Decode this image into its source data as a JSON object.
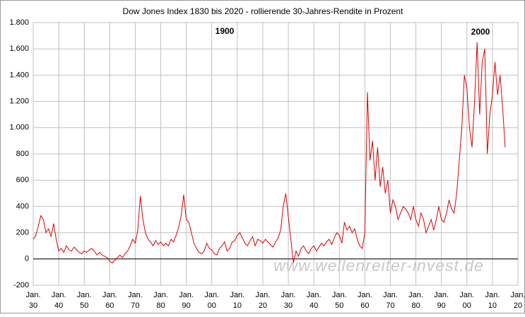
{
  "chart_data": {
    "type": "line",
    "title": "Dow Jones Index 1830 bis 2020 - rollierende 30-Jahres-Rendite in Prozent",
    "annotations": [
      "1900",
      "2000"
    ],
    "watermark": "www.wellenreiter-invest.de",
    "x": [
      1830,
      1831,
      1832,
      1833,
      1834,
      1835,
      1836,
      1837,
      1838,
      1839,
      1840,
      1841,
      1842,
      1843,
      1844,
      1845,
      1846,
      1847,
      1848,
      1849,
      1850,
      1851,
      1852,
      1853,
      1854,
      1855,
      1856,
      1857,
      1858,
      1859,
      1860,
      1861,
      1862,
      1863,
      1864,
      1865,
      1866,
      1867,
      1868,
      1869,
      1870,
      1871,
      1872,
      1873,
      1874,
      1875,
      1876,
      1877,
      1878,
      1879,
      1880,
      1881,
      1882,
      1883,
      1884,
      1885,
      1886,
      1887,
      1888,
      1889,
      1890,
      1891,
      1892,
      1893,
      1894,
      1895,
      1896,
      1897,
      1898,
      1899,
      1900,
      1901,
      1902,
      1903,
      1904,
      1905,
      1906,
      1907,
      1908,
      1909,
      1910,
      1911,
      1912,
      1913,
      1914,
      1915,
      1916,
      1917,
      1918,
      1919,
      1920,
      1921,
      1922,
      1923,
      1924,
      1925,
      1926,
      1927,
      1928,
      1929,
      1930,
      1931,
      1932,
      1933,
      1934,
      1935,
      1936,
      1937,
      1938,
      1939,
      1940,
      1941,
      1942,
      1943,
      1944,
      1945,
      1946,
      1947,
      1948,
      1949,
      1950,
      1951,
      1952,
      1953,
      1954,
      1955,
      1956,
      1957,
      1958,
      1959,
      1960,
      1961,
      1962,
      1963,
      1964,
      1965,
      1966,
      1967,
      1968,
      1969,
      1970,
      1971,
      1972,
      1973,
      1974,
      1975,
      1976,
      1977,
      1978,
      1979,
      1980,
      1981,
      1982,
      1983,
      1984,
      1985,
      1986,
      1987,
      1988,
      1989,
      1990,
      1991,
      1992,
      1993,
      1994,
      1995,
      1996,
      1997,
      1998,
      1999,
      2000,
      2001,
      2002,
      2003,
      2004,
      2005,
      2006,
      2007,
      2008,
      2009,
      2010,
      2011,
      2012,
      2013,
      2014,
      2015
    ],
    "series": [
      {
        "color": "#e00000",
        "values": [
          150,
          180,
          250,
          330,
          300,
          200,
          230,
          170,
          270,
          150,
          60,
          80,
          50,
          100,
          70,
          60,
          90,
          70,
          50,
          40,
          60,
          50,
          70,
          80,
          60,
          30,
          50,
          30,
          20,
          10,
          -20,
          -30,
          -10,
          10,
          30,
          10,
          40,
          60,
          100,
          150,
          120,
          220,
          480,
          300,
          200,
          150,
          130,
          100,
          140,
          110,
          130,
          100,
          120,
          100,
          150,
          130,
          180,
          240,
          330,
          490,
          300,
          280,
          200,
          120,
          80,
          50,
          40,
          60,
          120,
          80,
          70,
          40,
          30,
          80,
          100,
          130,
          60,
          80,
          130,
          140,
          180,
          200,
          160,
          120,
          100,
          140,
          170,
          100,
          150,
          140,
          120,
          150,
          130,
          110,
          90,
          130,
          160,
          220,
          400,
          500,
          320,
          150,
          -30,
          60,
          20,
          80,
          100,
          60,
          40,
          80,
          100,
          60,
          90,
          120,
          100,
          130,
          150,
          110,
          160,
          200,
          180,
          120,
          280,
          220,
          250,
          200,
          230,
          150,
          100,
          80,
          200,
          1270,
          750,
          900,
          600,
          850,
          550,
          700,
          500,
          600,
          350,
          450,
          400,
          300,
          350,
          400,
          380,
          350,
          300,
          400,
          300,
          250,
          350,
          300,
          200,
          250,
          300,
          220,
          300,
          400,
          300,
          280,
          350,
          450,
          380,
          350,
          500,
          750,
          1000,
          1400,
          1300,
          1000,
          850,
          1200,
          1650,
          1100,
          1500,
          1600,
          800,
          1100,
          1250,
          1500,
          1250,
          1400,
          1150,
          850
        ]
      }
    ],
    "xlim": [
      1830,
      2020
    ],
    "xticks": [
      {
        "value": 1830,
        "label": "Jan. 30"
      },
      {
        "value": 1840,
        "label": "Jan. 40"
      },
      {
        "value": 1850,
        "label": "Jan. 50"
      },
      {
        "value": 1860,
        "label": "Jan. 60"
      },
      {
        "value": 1870,
        "label": "Jan. 70"
      },
      {
        "value": 1880,
        "label": "Jan. 80"
      },
      {
        "value": 1890,
        "label": "Jan. 90"
      },
      {
        "value": 1900,
        "label": "Jan. 00"
      },
      {
        "value": 1910,
        "label": "Jan. 10"
      },
      {
        "value": 1920,
        "label": "Jan. 20"
      },
      {
        "value": 1930,
        "label": "Jan. 30"
      },
      {
        "value": 1940,
        "label": "Jan. 40"
      },
      {
        "value": 1950,
        "label": "Jan. 50"
      },
      {
        "value": 1960,
        "label": "Jan. 60"
      },
      {
        "value": 1970,
        "label": "Jan. 70"
      },
      {
        "value": 1980,
        "label": "Jan. 80"
      },
      {
        "value": 1990,
        "label": "Jan. 90"
      },
      {
        "value": 2000,
        "label": "Jan. 00"
      },
      {
        "value": 2010,
        "label": "Jan. 10"
      },
      {
        "value": 2020,
        "label": "Jan. 20"
      }
    ],
    "ylim": [
      -200,
      1800
    ],
    "yticks": [
      -200,
      0,
      200,
      400,
      600,
      800,
      {
        "value": 1000,
        "label": "1.000"
      },
      {
        "value": 1200,
        "label": "1.200"
      },
      {
        "value": 1400,
        "label": "1.400"
      },
      {
        "value": 1600,
        "label": "1.600"
      },
      {
        "value": 1800,
        "label": "1.800"
      }
    ],
    "grid": true
  }
}
